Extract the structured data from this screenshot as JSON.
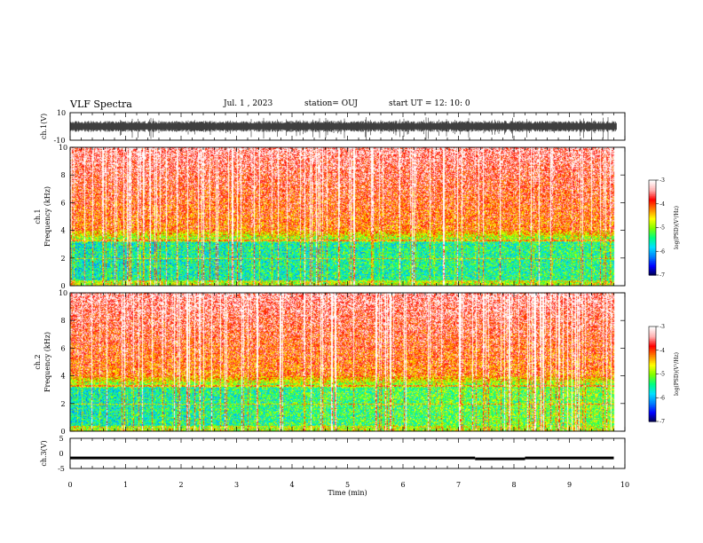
{
  "header": {
    "title": "VLF Spectra",
    "date": "Jul.  1  , 2023",
    "station": "station= OUJ",
    "start": "start  UT  =   12: 10: 0"
  },
  "chart_data": [
    {
      "type": "line",
      "ylabel": "ch.1(V)",
      "ylim": [
        -10,
        10
      ],
      "yticks": [
        "10",
        "-10"
      ],
      "xlim": [
        0,
        10
      ],
      "description_series": "broadband waveform, dense noise near ~0 V",
      "color": "#000000"
    },
    {
      "type": "heatmap",
      "ylabel": "ch.1\nFrequency  (kHz)",
      "ylabel_lines": [
        "ch.1",
        "Frequency  (kHz)"
      ],
      "ylim": [
        0,
        10
      ],
      "yticks": [
        "0",
        "2",
        "4",
        "6",
        "8",
        "10"
      ],
      "xlim": [
        0,
        9.8
      ],
      "colorbar": {
        "min": -7,
        "max": -3,
        "ticks": [
          "-3",
          "-4",
          "-5",
          "-6",
          "-7"
        ],
        "label": "log(PSD)(V²/Hz)"
      }
    },
    {
      "type": "heatmap",
      "ylabel": "ch.2\nFrequency  (kHz)",
      "ylabel_lines": [
        "ch.2",
        "Frequency  (kHz)"
      ],
      "ylim": [
        0,
        10
      ],
      "yticks": [
        "0",
        "2",
        "4",
        "6",
        "8",
        "10"
      ],
      "xlim": [
        0,
        9.8
      ],
      "colorbar": {
        "min": -7,
        "max": -3,
        "ticks": [
          "-3",
          "-4",
          "-5",
          "-6",
          "-7"
        ],
        "label": "log(PSD)(V²/Hz)"
      }
    },
    {
      "type": "line",
      "ylabel": "ch.3(V)",
      "ylim": [
        -5,
        5
      ],
      "yticks": [
        "5",
        "0",
        "-5"
      ],
      "xlim": [
        0,
        10
      ],
      "xlabel": "Time  (min)",
      "xticks": [
        "0",
        "1",
        "2",
        "3",
        "4",
        "5",
        "6",
        "7",
        "8",
        "9",
        "10"
      ],
      "segments": [
        {
          "x": [
            0,
            7.3
          ],
          "y": -1.5
        },
        {
          "x": [
            7.3,
            8.2
          ],
          "y": -1.8
        },
        {
          "x": [
            8.2,
            9.8
          ],
          "y": -1.5
        }
      ],
      "color": "#000000"
    }
  ],
  "colors": {
    "scale": [
      "#00004a",
      "#0000ff",
      "#0080ff",
      "#00e0ff",
      "#00ff80",
      "#80ff00",
      "#ffff00",
      "#ff8000",
      "#ff0000",
      "#ffb0b0",
      "#ffffff"
    ]
  }
}
